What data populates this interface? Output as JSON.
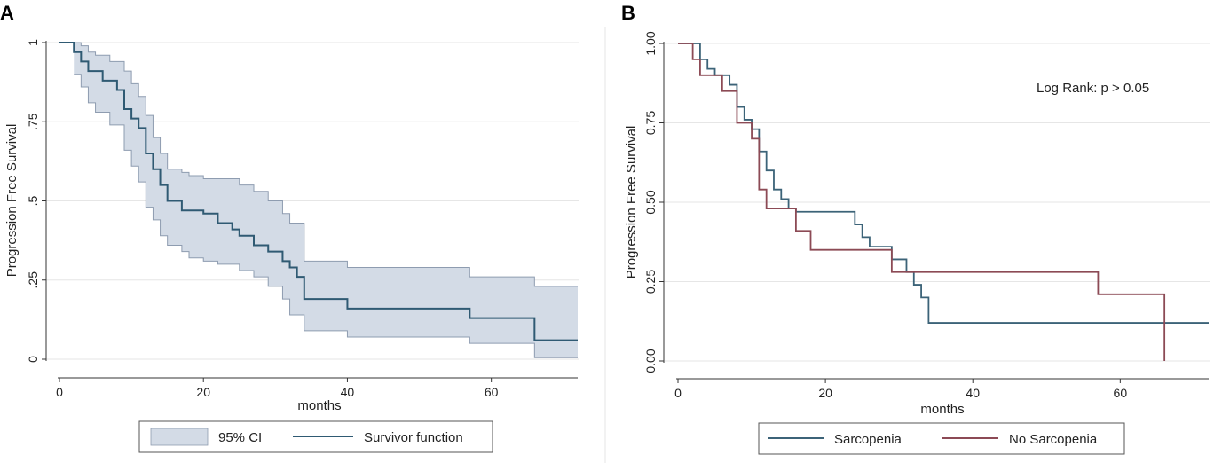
{
  "figure": {
    "panels": [
      "A",
      "B"
    ]
  },
  "chart_data": [
    {
      "type": "line",
      "panel": "A",
      "title": "",
      "xlabel": "months",
      "ylabel": "Progression Free Survival",
      "xlim": [
        0,
        72
      ],
      "ylim": [
        0,
        1
      ],
      "xticks": [
        0,
        20,
        40,
        60
      ],
      "xtick_labels": [
        "0",
        "20",
        "40",
        "60"
      ],
      "yticks": [
        0,
        0.25,
        0.5,
        0.75,
        1
      ],
      "ytick_labels": [
        "0",
        ".25",
        ".5",
        ".75",
        "1"
      ],
      "grid": true,
      "legend_position": "bottom",
      "colors": {
        "line": "#2f5a73",
        "band": "#d3dbe6",
        "band_edge": "#8e9cb0"
      },
      "series": [
        {
          "name": "95% CI",
          "kind": "band",
          "x": [
            2,
            3,
            4,
            5,
            7,
            9,
            10,
            11,
            12,
            13,
            14,
            15,
            17,
            18,
            20,
            22,
            25,
            27,
            29,
            31,
            32,
            34,
            40,
            57,
            66,
            72
          ],
          "lower": [
            0.9,
            0.86,
            0.81,
            0.78,
            0.74,
            0.66,
            0.61,
            0.56,
            0.48,
            0.44,
            0.39,
            0.36,
            0.34,
            0.32,
            0.31,
            0.3,
            0.28,
            0.26,
            0.23,
            0.19,
            0.14,
            0.09,
            0.07,
            0.05,
            0.005,
            0.005
          ],
          "upper": [
            1.0,
            0.99,
            0.97,
            0.96,
            0.94,
            0.91,
            0.87,
            0.83,
            0.77,
            0.7,
            0.65,
            0.6,
            0.59,
            0.58,
            0.57,
            0.57,
            0.55,
            0.53,
            0.5,
            0.46,
            0.43,
            0.31,
            0.29,
            0.26,
            0.23,
            0.23
          ]
        },
        {
          "name": "Survivor function",
          "kind": "step",
          "x": [
            0,
            2,
            3,
            4,
            6,
            8,
            9,
            10,
            11,
            12,
            13,
            14,
            15,
            17,
            20,
            22,
            24,
            25,
            27,
            29,
            31,
            32,
            33,
            34,
            40,
            57,
            66,
            72
          ],
          "y": [
            1.0,
            0.97,
            0.94,
            0.91,
            0.88,
            0.85,
            0.79,
            0.76,
            0.73,
            0.65,
            0.6,
            0.55,
            0.5,
            0.47,
            0.46,
            0.43,
            0.41,
            0.39,
            0.36,
            0.34,
            0.31,
            0.29,
            0.26,
            0.19,
            0.16,
            0.13,
            0.06,
            0.06
          ]
        }
      ]
    },
    {
      "type": "line",
      "panel": "B",
      "title": "",
      "xlabel": "months",
      "ylabel": "Progression Free Survival",
      "xlim": [
        0,
        72
      ],
      "ylim": [
        0,
        1
      ],
      "xticks": [
        0,
        20,
        40,
        60
      ],
      "xtick_labels": [
        "0",
        "20",
        "40",
        "60"
      ],
      "yticks": [
        0,
        0.25,
        0.5,
        0.75,
        1
      ],
      "ytick_labels": [
        "0.00",
        "0.25",
        "0.50",
        "0.75",
        "1.00"
      ],
      "grid": true,
      "legend_position": "bottom",
      "annotation": "Log Rank: p > 0.05",
      "series": [
        {
          "name": "Sarcopenia",
          "kind": "step",
          "color": "#3c6378",
          "x": [
            0,
            3,
            4,
            5,
            7,
            8,
            9,
            10,
            11,
            12,
            13,
            14,
            15,
            16,
            24,
            25,
            26,
            29,
            31,
            32,
            33,
            34,
            72
          ],
          "y": [
            1.0,
            0.95,
            0.92,
            0.9,
            0.87,
            0.8,
            0.76,
            0.73,
            0.66,
            0.6,
            0.54,
            0.51,
            0.48,
            0.47,
            0.43,
            0.39,
            0.36,
            0.32,
            0.28,
            0.24,
            0.2,
            0.12,
            0.12
          ]
        },
        {
          "name": "No Sarcopenia",
          "kind": "step",
          "color": "#8c4a55",
          "x": [
            0,
            2,
            3,
            6,
            8,
            10,
            11,
            12,
            16,
            18,
            29,
            31,
            57,
            66,
            66
          ],
          "y": [
            1.0,
            0.95,
            0.9,
            0.85,
            0.75,
            0.7,
            0.54,
            0.48,
            0.41,
            0.35,
            0.28,
            0.28,
            0.21,
            0.21,
            0.0
          ]
        }
      ]
    }
  ]
}
